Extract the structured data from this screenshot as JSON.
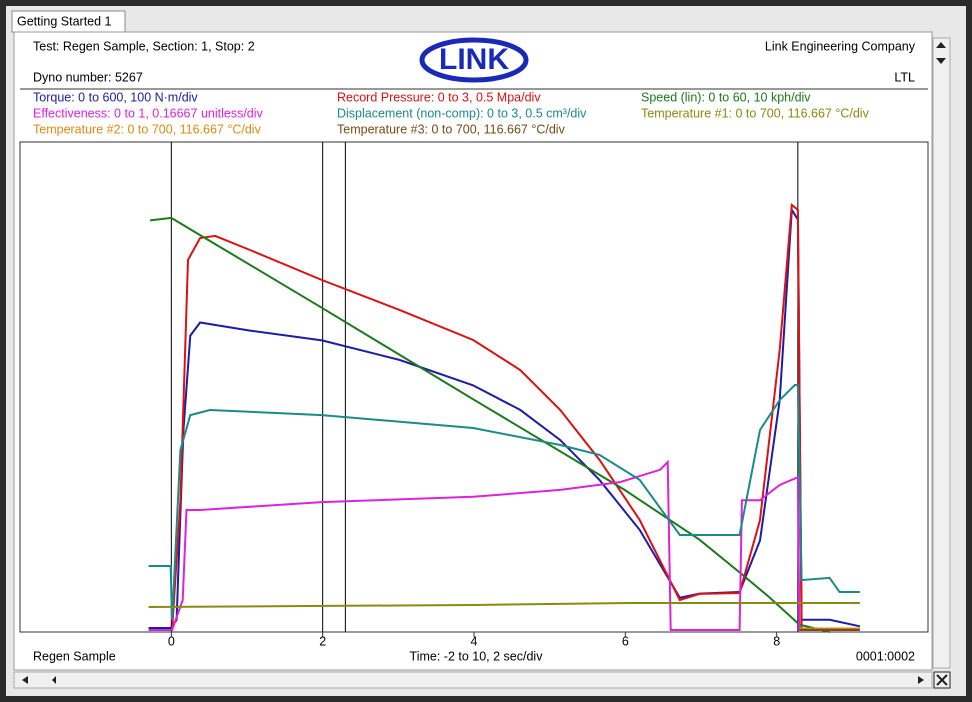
{
  "window": {
    "tab": "Getting Started 1"
  },
  "header": {
    "test": "Test: Regen Sample, Section: 1, Stop: 2",
    "dyno": "Dyno number: 5267",
    "logo": "LINK",
    "company": "Link Engineering Company",
    "code": "LTL"
  },
  "footer": {
    "sample": "Regen Sample",
    "time": "Time: -2 to 10, 2 sec/div",
    "counter": "0001:0002"
  },
  "chart_data": {
    "type": "line",
    "xlim": [
      -2,
      10
    ],
    "xticks": [
      0,
      2,
      4,
      6,
      8
    ],
    "cursors": [
      0,
      2,
      2.3,
      8.28
    ],
    "series": [
      {
        "name": "Torque: 0 to 600, 100 N·m/div",
        "color": "#1c1ca8",
        "ylim": [
          0,
          600
        ],
        "x": [
          -0.3,
          -0.01,
          0.07,
          0.16,
          0.25,
          0.38,
          1.04,
          1.99,
          3.02,
          3.99,
          4.61,
          5.14,
          5.66,
          6.19,
          6.72,
          6.98,
          7.51,
          7.78,
          8.04,
          8.2,
          8.28,
          8.33,
          8.7,
          9.1
        ],
        "values": [
          4.9,
          4.9,
          14.7,
          247,
          363,
          379,
          369,
          357,
          333,
          302,
          272,
          235,
          186,
          125,
          42,
          47,
          49,
          112,
          284,
          517,
          505,
          15,
          15,
          7
        ]
      },
      {
        "name": "Record Pressure: 0 to 3, 0.5 Mpa/div",
        "color": "#dd1111",
        "ylim": [
          0,
          3
        ],
        "x": [
          -0.3,
          0.01,
          0.12,
          0.22,
          0.38,
          0.58,
          1.04,
          1.99,
          3.02,
          3.99,
          4.61,
          5.14,
          5.66,
          6.19,
          6.72,
          6.98,
          7.51,
          7.78,
          8.04,
          8.2,
          8.28,
          8.33,
          9.1
        ],
        "values": [
          0.012,
          0.012,
          0.808,
          2.278,
          2.412,
          2.425,
          2.339,
          2.155,
          1.971,
          1.788,
          1.604,
          1.359,
          1.053,
          0.686,
          0.196,
          0.233,
          0.239,
          0.686,
          1.727,
          2.614,
          2.584,
          0.012,
          0.012
        ]
      },
      {
        "name": "Speed (lin): 0 to 60, 10 kph/div",
        "color": "#1a7a1a",
        "ylim": [
          0,
          60
        ],
        "x": [
          -0.28,
          0,
          0.38,
          1.99,
          3.99,
          5.99,
          6.98,
          7.51,
          7.91,
          8.3,
          8.7
        ],
        "values": [
          50.4,
          50.7,
          48.6,
          39.7,
          28.5,
          17.4,
          11.3,
          7.3,
          4.2,
          0.9,
          0
        ]
      },
      {
        "name": "Effectiveness: 0 to 1, 0.16667 unitless/div",
        "color": "#dd22dd",
        "ylim": [
          0,
          1
        ],
        "x": [
          -0.3,
          0.01,
          0.15,
          0.2,
          0.38,
          1.99,
          3.99,
          5.14,
          5.93,
          6.46,
          6.56,
          6.6,
          7.51,
          7.54,
          7.78,
          8.04,
          8.28,
          8.3,
          9.1
        ],
        "values": [
          0.004,
          0.004,
          0.065,
          0.249,
          0.249,
          0.265,
          0.276,
          0.29,
          0.306,
          0.331,
          0.347,
          0.004,
          0.004,
          0.269,
          0.269,
          0.3,
          0.316,
          0.004,
          0.004
        ]
      },
      {
        "name": "Displacement (non-comp): 0 to 3, 0.5 cm³/div",
        "color": "#1a8a8a",
        "ylim": [
          0,
          3
        ],
        "x": [
          -0.3,
          -0.01,
          0.01,
          0.12,
          0.25,
          0.51,
          1.99,
          3.99,
          5.14,
          5.66,
          6.19,
          6.72,
          7.51,
          7.78,
          8.04,
          8.24,
          8.28,
          8.33,
          8.7,
          8.83,
          9.1
        ],
        "values": [
          0.404,
          0.404,
          0.073,
          1.114,
          1.328,
          1.359,
          1.328,
          1.249,
          1.145,
          1.084,
          0.931,
          0.594,
          0.594,
          1.237,
          1.42,
          1.512,
          1.512,
          0.318,
          0.331,
          0.245,
          0.245
        ]
      },
      {
        "name": "Temperature #1: 0 to 700, 116.667 °C/div",
        "color": "#8a8a10",
        "ylim": [
          0,
          700
        ],
        "x": [
          -0.3,
          3.99,
          6.07,
          9.1
        ],
        "values": [
          35.7,
          38.6,
          41.4,
          41.4
        ]
      },
      {
        "name": "Temperature #2: 0 to 700, 116.667 °C/div",
        "color": "#e08a10",
        "ylim": [
          0,
          700
        ],
        "x": [
          8.3,
          9.1
        ],
        "values": [
          5,
          5
        ]
      },
      {
        "name": "Temperature #3: 0 to 700, 116.667 °C/div",
        "color": "#7a4a10",
        "ylim": [
          0,
          700
        ],
        "x": [
          8.3,
          9.1
        ],
        "values": [
          3,
          3
        ]
      }
    ]
  }
}
